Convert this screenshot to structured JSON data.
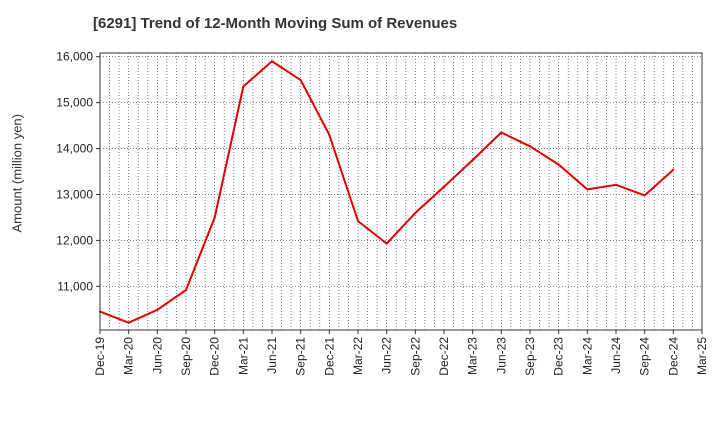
{
  "chart_data": {
    "type": "line",
    "title": "[6291]  Trend of 12-Month Moving Sum of Revenues",
    "xlabel": "",
    "ylabel": "Amount (million yen)",
    "ylim": [
      10050,
      16080
    ],
    "yticks": [
      11000,
      12000,
      13000,
      14000,
      15000,
      16000
    ],
    "ytick_labels": [
      "11,000",
      "12,000",
      "13,000",
      "14,000",
      "15,000",
      "16,000"
    ],
    "categories": [
      "Dec-19",
      "Mar-20",
      "Jun-20",
      "Sep-20",
      "Dec-20",
      "Mar-21",
      "Jun-21",
      "Sep-21",
      "Dec-21",
      "Mar-22",
      "Jun-22",
      "Sep-22",
      "Dec-22",
      "Mar-23",
      "Jun-23",
      "Sep-23",
      "Dec-23",
      "Mar-24",
      "Jun-24",
      "Sep-24",
      "Dec-24",
      "Mar-25"
    ],
    "series": [
      {
        "name": "",
        "color": "#e00000",
        "values": [
          10450,
          10210,
          10490,
          10920,
          12500,
          15350,
          15900,
          15490,
          14300,
          12420,
          11930,
          12600,
          13170,
          13750,
          14350,
          14050,
          13650,
          13110,
          13210,
          12980,
          13540,
          null
        ]
      }
    ],
    "grid": true,
    "grid_style": "dotted",
    "legend": "none"
  }
}
